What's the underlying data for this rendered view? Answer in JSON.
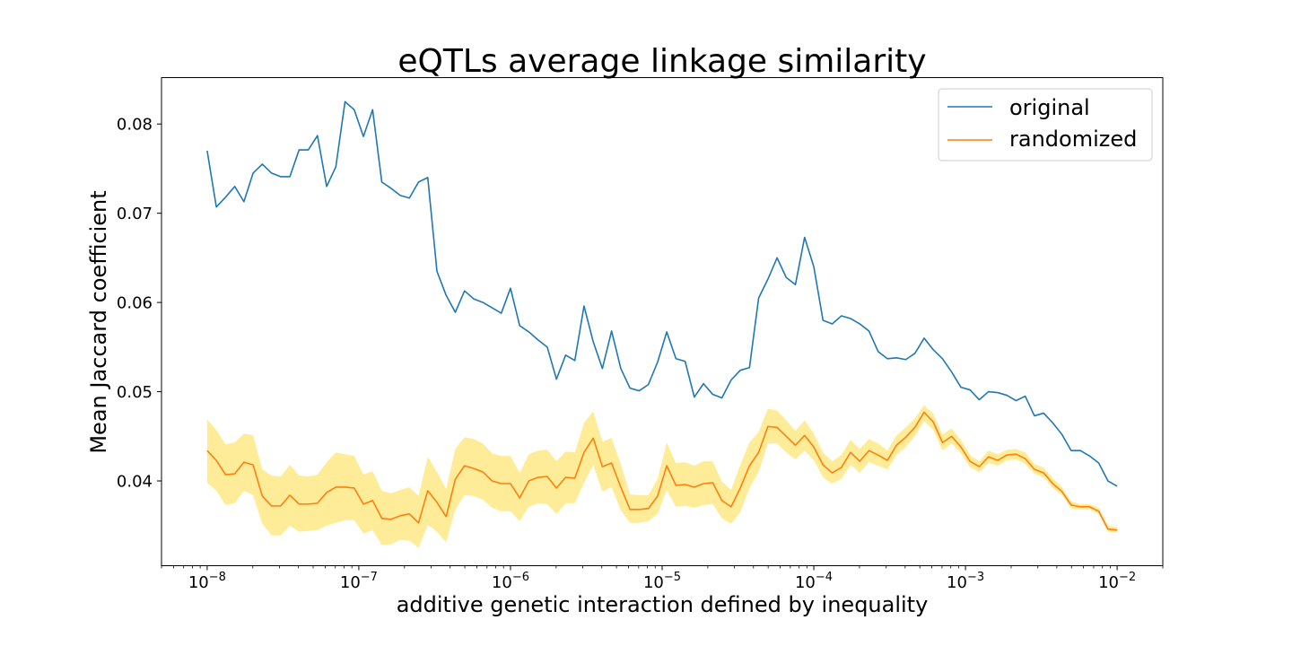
{
  "chart_data": {
    "type": "line",
    "title": "eQTLs average linkage similarity",
    "xlabel": "additive genetic interaction defined by inequality",
    "ylabel": "Mean Jaccard coefficient",
    "xscale": "log",
    "xlim": [
      5e-09,
      0.02
    ],
    "ylim": [
      0.0305,
      0.0852
    ],
    "x_major_ticks": [
      1e-08,
      1e-07,
      1e-06,
      1e-05,
      0.0001,
      0.001,
      0.01
    ],
    "x_tick_labels": [
      {
        "base": "10",
        "exp": "−8"
      },
      {
        "base": "10",
        "exp": "−7"
      },
      {
        "base": "10",
        "exp": "−6"
      },
      {
        "base": "10",
        "exp": "−5"
      },
      {
        "base": "10",
        "exp": "−4"
      },
      {
        "base": "10",
        "exp": "−3"
      },
      {
        "base": "10",
        "exp": "−2"
      }
    ],
    "y_ticks": [
      0.04,
      0.05,
      0.06,
      0.07,
      0.08
    ],
    "y_tick_labels": [
      "0.04",
      "0.05",
      "0.06",
      "0.07",
      "0.08"
    ],
    "legend_position": "top-right",
    "grid": false,
    "x_log10": {
      "start": -8,
      "end": -2,
      "count": 121
    },
    "series": [
      {
        "name": "original",
        "color": "#1f77b4",
        "values": [
          0.077,
          0.0707,
          0.0718,
          0.073,
          0.0713,
          0.0745,
          0.0755,
          0.0745,
          0.0741,
          0.0741,
          0.0771,
          0.0771,
          0.0787,
          0.073,
          0.0752,
          0.0825,
          0.0816,
          0.0786,
          0.0816,
          0.0735,
          0.0728,
          0.072,
          0.0717,
          0.0735,
          0.074,
          0.0635,
          0.0608,
          0.0589,
          0.0613,
          0.0604,
          0.06,
          0.0594,
          0.0588,
          0.0616,
          0.0574,
          0.0567,
          0.0558,
          0.055,
          0.0514,
          0.0541,
          0.0535,
          0.0596,
          0.0556,
          0.0526,
          0.0568,
          0.0526,
          0.0504,
          0.0501,
          0.0508,
          0.0533,
          0.0567,
          0.0537,
          0.0534,
          0.0494,
          0.0509,
          0.0497,
          0.0493,
          0.0513,
          0.0524,
          0.0527,
          0.0605,
          0.0626,
          0.065,
          0.0628,
          0.062,
          0.0673,
          0.064,
          0.058,
          0.0576,
          0.0585,
          0.0582,
          0.0576,
          0.0568,
          0.0545,
          0.0537,
          0.0538,
          0.0536,
          0.0543,
          0.056,
          0.0547,
          0.0537,
          0.0522,
          0.0505,
          0.0502,
          0.0491,
          0.05,
          0.0499,
          0.0496,
          0.049,
          0.0495,
          0.0473,
          0.0476,
          0.0465,
          0.0452,
          0.0434,
          0.0434,
          0.0428,
          0.042,
          0.04,
          0.0394
        ],
        "values_x_count": 100
      },
      {
        "name": "randomized",
        "color": "#ff7f0e",
        "band_color": "#ffdd44",
        "values": [
          0.0434,
          0.0423,
          0.0407,
          0.0408,
          0.0421,
          0.0418,
          0.0383,
          0.0372,
          0.0372,
          0.0384,
          0.0374,
          0.0374,
          0.0375,
          0.0387,
          0.0393,
          0.0393,
          0.0392,
          0.0374,
          0.0378,
          0.0358,
          0.0357,
          0.0361,
          0.0363,
          0.0353,
          0.0389,
          0.0376,
          0.036,
          0.0402,
          0.0417,
          0.0414,
          0.041,
          0.04,
          0.0397,
          0.0397,
          0.0381,
          0.04,
          0.0404,
          0.0405,
          0.0392,
          0.0404,
          0.0403,
          0.0432,
          0.0448,
          0.0416,
          0.042,
          0.0393,
          0.0368,
          0.0368,
          0.0369,
          0.0383,
          0.0417,
          0.0395,
          0.0396,
          0.0393,
          0.0397,
          0.0398,
          0.0378,
          0.0371,
          0.0392,
          0.0417,
          0.0432,
          0.0461,
          0.046,
          0.045,
          0.044,
          0.0451,
          0.0438,
          0.0418,
          0.0409,
          0.0415,
          0.0432,
          0.0422,
          0.0434,
          0.0429,
          0.0423,
          0.044,
          0.0449,
          0.046,
          0.0477,
          0.0466,
          0.0443,
          0.045,
          0.0438,
          0.0422,
          0.0416,
          0.0427,
          0.0423,
          0.0429,
          0.043,
          0.0425,
          0.0413,
          0.0409,
          0.0397,
          0.0388,
          0.0373,
          0.0371,
          0.0371,
          0.0366,
          0.0346,
          0.0345
        ],
        "lower": [
          0.0398,
          0.0389,
          0.0373,
          0.0375,
          0.0389,
          0.0384,
          0.0352,
          0.0339,
          0.0339,
          0.035,
          0.0343,
          0.0344,
          0.0345,
          0.035,
          0.0353,
          0.0356,
          0.0356,
          0.0341,
          0.0345,
          0.0328,
          0.0329,
          0.0334,
          0.0333,
          0.0325,
          0.0351,
          0.0343,
          0.0331,
          0.0368,
          0.0384,
          0.0383,
          0.0379,
          0.037,
          0.0366,
          0.0366,
          0.0355,
          0.0371,
          0.0375,
          0.0374,
          0.0363,
          0.0375,
          0.0375,
          0.0398,
          0.0418,
          0.0388,
          0.0393,
          0.0367,
          0.0353,
          0.0353,
          0.0355,
          0.0363,
          0.039,
          0.0371,
          0.0372,
          0.037,
          0.0373,
          0.0374,
          0.0358,
          0.0352,
          0.0365,
          0.0392,
          0.041,
          0.0442,
          0.0442,
          0.0432,
          0.0424,
          0.0434,
          0.0423,
          0.0404,
          0.0397,
          0.0402,
          0.0418,
          0.0409,
          0.0421,
          0.0417,
          0.0413,
          0.0429,
          0.0438,
          0.045,
          0.0467,
          0.0457,
          0.0434,
          0.0442,
          0.0431,
          0.0415,
          0.041,
          0.042,
          0.0417,
          0.0423,
          0.0424,
          0.0419,
          0.0408,
          0.0404,
          0.0392,
          0.0384,
          0.0369,
          0.0368,
          0.0368,
          0.0363,
          0.0343,
          0.0342
        ],
        "upper": [
          0.0469,
          0.0457,
          0.0441,
          0.0443,
          0.0453,
          0.0451,
          0.0413,
          0.0406,
          0.0405,
          0.0418,
          0.0406,
          0.0405,
          0.0407,
          0.0421,
          0.0432,
          0.043,
          0.0428,
          0.0407,
          0.0411,
          0.0389,
          0.0386,
          0.039,
          0.0393,
          0.0383,
          0.0427,
          0.041,
          0.0391,
          0.0436,
          0.0449,
          0.0447,
          0.0442,
          0.0431,
          0.0428,
          0.0428,
          0.0409,
          0.043,
          0.0434,
          0.0435,
          0.0422,
          0.0433,
          0.0432,
          0.0465,
          0.0478,
          0.0444,
          0.0448,
          0.0419,
          0.0385,
          0.0384,
          0.0384,
          0.0402,
          0.0443,
          0.042,
          0.0421,
          0.0417,
          0.0422,
          0.0422,
          0.0399,
          0.039,
          0.0418,
          0.0443,
          0.0455,
          0.0481,
          0.0479,
          0.0468,
          0.0456,
          0.0468,
          0.0453,
          0.0432,
          0.0422,
          0.0429,
          0.0446,
          0.0436,
          0.0447,
          0.0442,
          0.0434,
          0.0451,
          0.046,
          0.047,
          0.0485,
          0.0475,
          0.0452,
          0.0459,
          0.0446,
          0.0429,
          0.0422,
          0.0434,
          0.043,
          0.0435,
          0.0436,
          0.0432,
          0.0419,
          0.0415,
          0.0403,
          0.0393,
          0.0377,
          0.0374,
          0.0374,
          0.037,
          0.035,
          0.0348
        ]
      }
    ]
  }
}
